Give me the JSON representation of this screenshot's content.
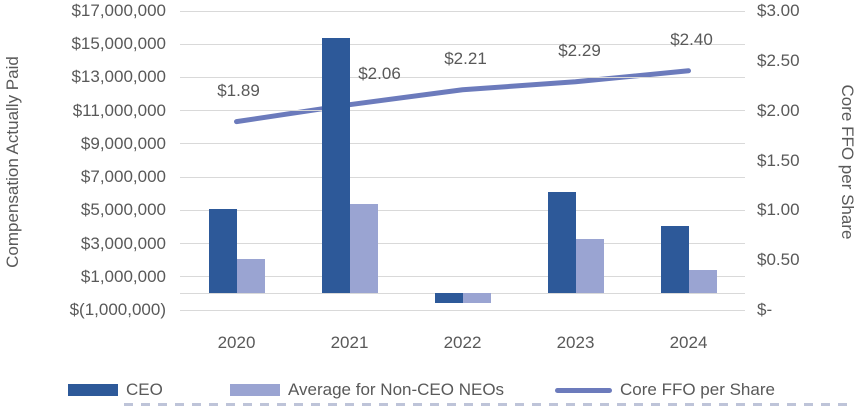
{
  "chart_data": {
    "type": "combo-bar-line",
    "categories": [
      "2020",
      "2021",
      "2022",
      "2023",
      "2024"
    ],
    "series": [
      {
        "name": "CEO",
        "type": "bar",
        "axis": "left",
        "color": "#2d5999",
        "values": [
          5100000,
          15350000,
          -600000,
          6100000,
          4050000
        ]
      },
      {
        "name": "Average for Non-CEO NEOs",
        "type": "bar",
        "axis": "left",
        "color": "#9aa4d2",
        "values": [
          2100000,
          5400000,
          -550000,
          3300000,
          1400000
        ]
      },
      {
        "name": "Core FFO per Share",
        "type": "line",
        "axis": "right",
        "color": "#6c7bbc",
        "values": [
          1.89,
          2.06,
          2.21,
          2.29,
          2.4
        ],
        "data_labels": [
          "$1.89",
          "$2.06",
          "$2.21",
          "$2.29",
          "$2.40"
        ]
      }
    ],
    "left_axis": {
      "title": "Compensation Actually Paid",
      "min": -1000000,
      "max": 17000000,
      "tick_step": 2000000,
      "tick_values": [
        17000000,
        15000000,
        13000000,
        11000000,
        9000000,
        7000000,
        5000000,
        3000000,
        1000000,
        -1000000
      ],
      "tick_labels": [
        "$17,000,000",
        "$15,000,000",
        "$13,000,000",
        "$11,000,000",
        "$9,000,000",
        "$7,000,000",
        "$5,000,000",
        "$3,000,000",
        "$1,000,000",
        "$(1,000,000)"
      ]
    },
    "right_axis": {
      "title": "Core FFO per Share",
      "min": 0,
      "max": 3,
      "tick_step": 0.5,
      "tick_values": [
        3.0,
        2.5,
        2.0,
        1.5,
        1.0,
        0.5,
        0
      ],
      "tick_labels": [
        "$3.00",
        "$2.50",
        "$2.00",
        "$1.50",
        "$1.00",
        "$0.50",
        "$-"
      ]
    },
    "grid": true,
    "legend_position": "bottom",
    "colors": {
      "gridline": "#d9d9d9",
      "text": "#595959"
    }
  }
}
